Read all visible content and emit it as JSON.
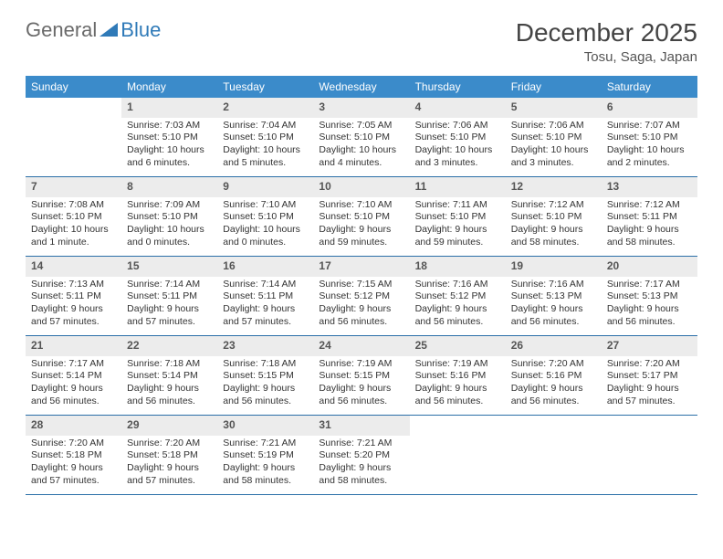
{
  "brand": {
    "part1": "General",
    "part2": "Blue"
  },
  "title": {
    "month": "December 2025",
    "location": "Tosu, Saga, Japan"
  },
  "colors": {
    "header_bg": "#3b8bca",
    "header_text": "#ffffff",
    "daynum_bg": "#ececec",
    "week_border": "#2b6fa8",
    "body_text": "#333333"
  },
  "dow": [
    "Sunday",
    "Monday",
    "Tuesday",
    "Wednesday",
    "Thursday",
    "Friday",
    "Saturday"
  ],
  "weeks": [
    [
      {
        "n": "",
        "sunrise": "",
        "sunset": "",
        "daylight": ""
      },
      {
        "n": "1",
        "sunrise": "Sunrise: 7:03 AM",
        "sunset": "Sunset: 5:10 PM",
        "daylight": "Daylight: 10 hours and 6 minutes."
      },
      {
        "n": "2",
        "sunrise": "Sunrise: 7:04 AM",
        "sunset": "Sunset: 5:10 PM",
        "daylight": "Daylight: 10 hours and 5 minutes."
      },
      {
        "n": "3",
        "sunrise": "Sunrise: 7:05 AM",
        "sunset": "Sunset: 5:10 PM",
        "daylight": "Daylight: 10 hours and 4 minutes."
      },
      {
        "n": "4",
        "sunrise": "Sunrise: 7:06 AM",
        "sunset": "Sunset: 5:10 PM",
        "daylight": "Daylight: 10 hours and 3 minutes."
      },
      {
        "n": "5",
        "sunrise": "Sunrise: 7:06 AM",
        "sunset": "Sunset: 5:10 PM",
        "daylight": "Daylight: 10 hours and 3 minutes."
      },
      {
        "n": "6",
        "sunrise": "Sunrise: 7:07 AM",
        "sunset": "Sunset: 5:10 PM",
        "daylight": "Daylight: 10 hours and 2 minutes."
      }
    ],
    [
      {
        "n": "7",
        "sunrise": "Sunrise: 7:08 AM",
        "sunset": "Sunset: 5:10 PM",
        "daylight": "Daylight: 10 hours and 1 minute."
      },
      {
        "n": "8",
        "sunrise": "Sunrise: 7:09 AM",
        "sunset": "Sunset: 5:10 PM",
        "daylight": "Daylight: 10 hours and 0 minutes."
      },
      {
        "n": "9",
        "sunrise": "Sunrise: 7:10 AM",
        "sunset": "Sunset: 5:10 PM",
        "daylight": "Daylight: 10 hours and 0 minutes."
      },
      {
        "n": "10",
        "sunrise": "Sunrise: 7:10 AM",
        "sunset": "Sunset: 5:10 PM",
        "daylight": "Daylight: 9 hours and 59 minutes."
      },
      {
        "n": "11",
        "sunrise": "Sunrise: 7:11 AM",
        "sunset": "Sunset: 5:10 PM",
        "daylight": "Daylight: 9 hours and 59 minutes."
      },
      {
        "n": "12",
        "sunrise": "Sunrise: 7:12 AM",
        "sunset": "Sunset: 5:10 PM",
        "daylight": "Daylight: 9 hours and 58 minutes."
      },
      {
        "n": "13",
        "sunrise": "Sunrise: 7:12 AM",
        "sunset": "Sunset: 5:11 PM",
        "daylight": "Daylight: 9 hours and 58 minutes."
      }
    ],
    [
      {
        "n": "14",
        "sunrise": "Sunrise: 7:13 AM",
        "sunset": "Sunset: 5:11 PM",
        "daylight": "Daylight: 9 hours and 57 minutes."
      },
      {
        "n": "15",
        "sunrise": "Sunrise: 7:14 AM",
        "sunset": "Sunset: 5:11 PM",
        "daylight": "Daylight: 9 hours and 57 minutes."
      },
      {
        "n": "16",
        "sunrise": "Sunrise: 7:14 AM",
        "sunset": "Sunset: 5:11 PM",
        "daylight": "Daylight: 9 hours and 57 minutes."
      },
      {
        "n": "17",
        "sunrise": "Sunrise: 7:15 AM",
        "sunset": "Sunset: 5:12 PM",
        "daylight": "Daylight: 9 hours and 56 minutes."
      },
      {
        "n": "18",
        "sunrise": "Sunrise: 7:16 AM",
        "sunset": "Sunset: 5:12 PM",
        "daylight": "Daylight: 9 hours and 56 minutes."
      },
      {
        "n": "19",
        "sunrise": "Sunrise: 7:16 AM",
        "sunset": "Sunset: 5:13 PM",
        "daylight": "Daylight: 9 hours and 56 minutes."
      },
      {
        "n": "20",
        "sunrise": "Sunrise: 7:17 AM",
        "sunset": "Sunset: 5:13 PM",
        "daylight": "Daylight: 9 hours and 56 minutes."
      }
    ],
    [
      {
        "n": "21",
        "sunrise": "Sunrise: 7:17 AM",
        "sunset": "Sunset: 5:14 PM",
        "daylight": "Daylight: 9 hours and 56 minutes."
      },
      {
        "n": "22",
        "sunrise": "Sunrise: 7:18 AM",
        "sunset": "Sunset: 5:14 PM",
        "daylight": "Daylight: 9 hours and 56 minutes."
      },
      {
        "n": "23",
        "sunrise": "Sunrise: 7:18 AM",
        "sunset": "Sunset: 5:15 PM",
        "daylight": "Daylight: 9 hours and 56 minutes."
      },
      {
        "n": "24",
        "sunrise": "Sunrise: 7:19 AM",
        "sunset": "Sunset: 5:15 PM",
        "daylight": "Daylight: 9 hours and 56 minutes."
      },
      {
        "n": "25",
        "sunrise": "Sunrise: 7:19 AM",
        "sunset": "Sunset: 5:16 PM",
        "daylight": "Daylight: 9 hours and 56 minutes."
      },
      {
        "n": "26",
        "sunrise": "Sunrise: 7:20 AM",
        "sunset": "Sunset: 5:16 PM",
        "daylight": "Daylight: 9 hours and 56 minutes."
      },
      {
        "n": "27",
        "sunrise": "Sunrise: 7:20 AM",
        "sunset": "Sunset: 5:17 PM",
        "daylight": "Daylight: 9 hours and 57 minutes."
      }
    ],
    [
      {
        "n": "28",
        "sunrise": "Sunrise: 7:20 AM",
        "sunset": "Sunset: 5:18 PM",
        "daylight": "Daylight: 9 hours and 57 minutes."
      },
      {
        "n": "29",
        "sunrise": "Sunrise: 7:20 AM",
        "sunset": "Sunset: 5:18 PM",
        "daylight": "Daylight: 9 hours and 57 minutes."
      },
      {
        "n": "30",
        "sunrise": "Sunrise: 7:21 AM",
        "sunset": "Sunset: 5:19 PM",
        "daylight": "Daylight: 9 hours and 58 minutes."
      },
      {
        "n": "31",
        "sunrise": "Sunrise: 7:21 AM",
        "sunset": "Sunset: 5:20 PM",
        "daylight": "Daylight: 9 hours and 58 minutes."
      },
      {
        "n": "",
        "sunrise": "",
        "sunset": "",
        "daylight": ""
      },
      {
        "n": "",
        "sunrise": "",
        "sunset": "",
        "daylight": ""
      },
      {
        "n": "",
        "sunrise": "",
        "sunset": "",
        "daylight": ""
      }
    ]
  ]
}
